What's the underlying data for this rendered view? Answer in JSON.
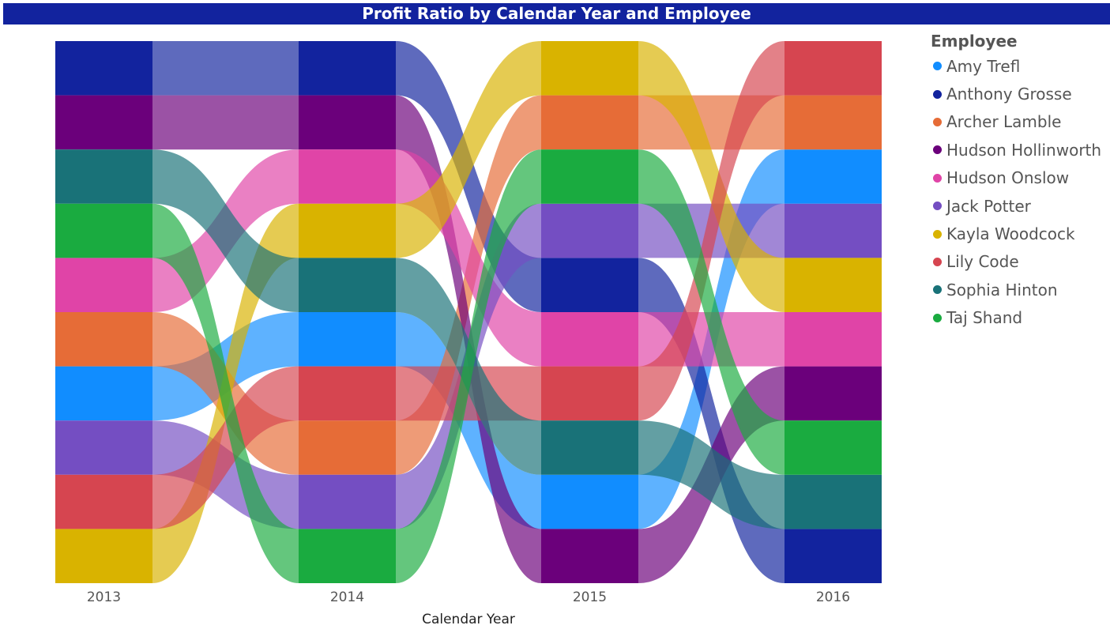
{
  "title": "Profit Ratio by Calendar Year and Employee",
  "chart_data": {
    "type": "ribbon",
    "title": "Profit Ratio by Calendar Year and Employee",
    "xlabel": "Calendar Year",
    "ylabel": "",
    "legend_title": "Employee",
    "legend_position": "right",
    "categories": [
      "2013",
      "2014",
      "2015",
      "2016"
    ],
    "series": [
      {
        "name": "Amy Trefl",
        "color": "#118DFF",
        "rank": [
          7,
          6,
          9,
          3
        ]
      },
      {
        "name": "Anthony Grosse",
        "color": "#12239E",
        "rank": [
          1,
          1,
          5,
          10
        ]
      },
      {
        "name": "Archer Lamble",
        "color": "#E66C37",
        "rank": [
          6,
          8,
          2,
          2
        ]
      },
      {
        "name": "Hudson Hollinworth",
        "color": "#6B007B",
        "rank": [
          2,
          2,
          10,
          7
        ]
      },
      {
        "name": "Hudson Onslow",
        "color": "#E044A7",
        "rank": [
          5,
          3,
          6,
          6
        ]
      },
      {
        "name": "Jack Potter",
        "color": "#744EC2",
        "rank": [
          8,
          9,
          4,
          4
        ]
      },
      {
        "name": "Kayla Woodcock",
        "color": "#D9B300",
        "rank": [
          10,
          4,
          1,
          5
        ]
      },
      {
        "name": "Lily Code",
        "color": "#D64550",
        "rank": [
          9,
          7,
          7,
          1
        ]
      },
      {
        "name": "Sophia Hinton",
        "color": "#197278",
        "rank": [
          3,
          5,
          8,
          9
        ]
      },
      {
        "name": "Taj Shand",
        "color": "#1AAB40",
        "rank": [
          4,
          10,
          3,
          8
        ]
      }
    ],
    "stack_order_note": "rank 1 = top of stack",
    "grid": false
  }
}
